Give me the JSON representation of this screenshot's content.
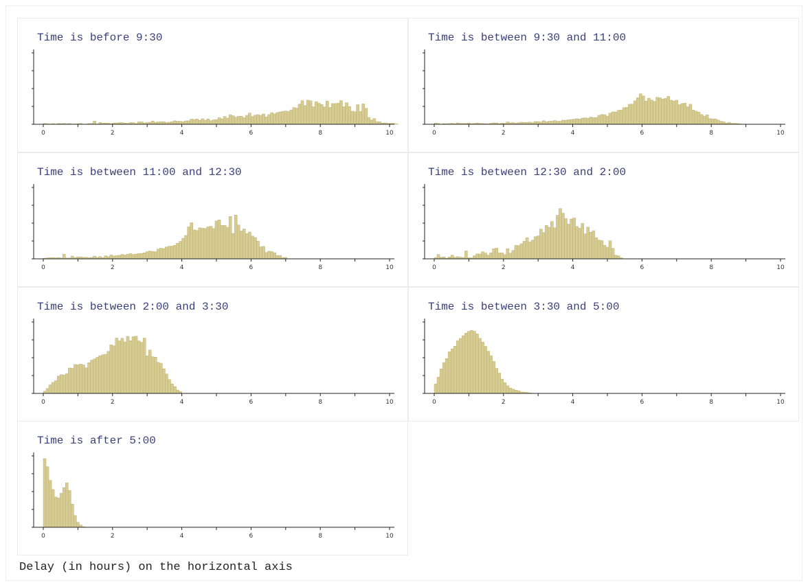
{
  "footer": "Delay (in hours) on the horizontal axis",
  "colors": {
    "bar_fill": "#d6cc93",
    "bar_stroke": "#bdb171",
    "axis": "#222222",
    "title": "#3a3f7a"
  },
  "chart_data": [
    {
      "type": "bar",
      "title": "Time is before 9:30",
      "x_ticks": [
        0,
        2,
        4,
        6,
        8,
        10
      ],
      "xlim": [
        0,
        10
      ],
      "ylim": [
        0,
        1
      ],
      "bin_width": 0.08,
      "x": [
        0.0,
        0.08,
        0.16,
        0.24,
        0.32,
        0.4,
        0.48,
        0.56,
        0.64,
        0.72,
        0.8,
        0.88,
        0.96,
        1.04,
        1.12,
        1.2,
        1.28,
        1.36,
        1.44,
        1.52,
        1.6,
        1.68,
        1.76,
        1.84,
        1.92,
        2.0,
        2.08,
        2.16,
        2.24,
        2.32,
        2.4,
        2.48,
        2.56,
        2.64,
        2.72,
        2.8,
        2.88,
        2.96,
        3.04,
        3.12,
        3.2,
        3.28,
        3.36,
        3.44,
        3.52,
        3.6,
        3.68,
        3.76,
        3.84,
        3.92,
        4.0,
        4.08,
        4.16,
        4.24,
        4.32,
        4.4,
        4.48,
        4.56,
        4.64,
        4.72,
        4.8,
        4.88,
        4.96,
        5.04,
        5.12,
        5.2,
        5.28,
        5.36,
        5.44,
        5.52,
        5.6,
        5.68,
        5.76,
        5.84,
        5.92,
        6.0,
        6.08,
        6.16,
        6.24,
        6.32,
        6.4,
        6.48,
        6.56,
        6.64,
        6.72,
        6.8,
        6.88,
        6.96,
        7.04,
        7.12,
        7.2,
        7.28,
        7.36,
        7.44,
        7.52,
        7.6,
        7.68,
        7.76,
        7.84,
        7.92,
        8.0,
        8.08,
        8.16,
        8.24,
        8.32,
        8.4,
        8.48,
        8.56,
        8.64,
        8.72,
        8.8,
        8.88,
        8.96,
        9.04,
        9.12,
        9.2,
        9.28,
        9.36,
        9.44,
        9.52,
        9.6,
        9.68,
        9.76,
        9.84,
        9.92,
        10.0,
        10.08,
        10.16
      ],
      "values": [
        0.011,
        0.006,
        0.003,
        0.009,
        0.0,
        0.012,
        0.007,
        0.011,
        0.006,
        0.011,
        0.003,
        0.004,
        0.006,
        0.011,
        0.0,
        0.0,
        0.01,
        0.01,
        0.046,
        0.005,
        0.025,
        0.016,
        0.017,
        0.014,
        0.009,
        0.018,
        0.019,
        0.023,
        0.023,
        0.017,
        0.013,
        0.024,
        0.023,
        0.01,
        0.033,
        0.034,
        0.019,
        0.024,
        0.028,
        0.046,
        0.027,
        0.033,
        0.035,
        0.036,
        0.023,
        0.029,
        0.037,
        0.049,
        0.042,
        0.041,
        0.036,
        0.048,
        0.049,
        0.072,
        0.066,
        0.073,
        0.055,
        0.077,
        0.057,
        0.074,
        0.05,
        0.062,
        0.064,
        0.092,
        0.077,
        0.11,
        0.086,
        0.134,
        0.119,
        0.098,
        0.111,
        0.113,
        0.093,
        0.125,
        0.157,
        0.109,
        0.128,
        0.135,
        0.126,
        0.144,
        0.104,
        0.136,
        0.163,
        0.146,
        0.165,
        0.173,
        0.181,
        0.186,
        0.179,
        0.201,
        0.234,
        0.226,
        0.283,
        0.331,
        0.262,
        0.338,
        0.329,
        0.245,
        0.317,
        0.296,
        0.276,
        0.244,
        0.325,
        0.236,
        0.29,
        0.29,
        0.297,
        0.331,
        0.245,
        0.302,
        0.248,
        0.183,
        0.176,
        0.274,
        0.178,
        0.285,
        0.224,
        0.095,
        0.06,
        0.08,
        0.036,
        0.034,
        0.017,
        0.019,
        0.013,
        0.013,
        0.013,
        0.006
      ]
    },
    {
      "type": "bar",
      "title": "Time is between 9:30 and 11:00",
      "x_ticks": [
        0,
        2,
        4,
        6,
        8,
        10
      ],
      "xlim": [
        0,
        10
      ],
      "ylim": [
        0,
        1
      ],
      "bin_width": 0.08,
      "x": [
        0.0,
        0.08,
        0.16,
        0.24,
        0.32,
        0.4,
        0.48,
        0.56,
        0.64,
        0.72,
        0.8,
        0.88,
        0.96,
        1.04,
        1.12,
        1.2,
        1.28,
        1.36,
        1.44,
        1.52,
        1.6,
        1.68,
        1.76,
        1.84,
        1.92,
        2.0,
        2.08,
        2.16,
        2.24,
        2.32,
        2.4,
        2.48,
        2.56,
        2.64,
        2.72,
        2.8,
        2.88,
        2.96,
        3.04,
        3.12,
        3.2,
        3.28,
        3.36,
        3.44,
        3.52,
        3.6,
        3.68,
        3.76,
        3.84,
        3.92,
        4.0,
        4.08,
        4.16,
        4.24,
        4.32,
        4.4,
        4.48,
        4.56,
        4.64,
        4.72,
        4.8,
        4.88,
        4.96,
        5.04,
        5.12,
        5.2,
        5.28,
        5.36,
        5.44,
        5.52,
        5.6,
        5.68,
        5.76,
        5.84,
        5.92,
        6.0,
        6.08,
        6.16,
        6.24,
        6.32,
        6.4,
        6.48,
        6.56,
        6.64,
        6.72,
        6.8,
        6.88,
        6.96,
        7.04,
        7.12,
        7.2,
        7.28,
        7.36,
        7.44,
        7.52,
        7.6,
        7.68,
        7.76,
        7.84,
        7.92,
        8.0,
        8.08,
        8.16,
        8.24,
        8.32,
        8.4,
        8.48,
        8.56,
        8.64,
        8.72,
        8.8
      ],
      "values": [
        0.017,
        0.011,
        0.003,
        0.008,
        0.008,
        0.01,
        0.013,
        0.006,
        0.019,
        0.011,
        0.011,
        0.012,
        0.018,
        0.007,
        0.011,
        0.018,
        0.012,
        0.01,
        0.008,
        0.006,
        0.014,
        0.02,
        0.019,
        0.008,
        0.017,
        0.013,
        0.033,
        0.02,
        0.024,
        0.014,
        0.022,
        0.029,
        0.026,
        0.025,
        0.031,
        0.023,
        0.038,
        0.038,
        0.03,
        0.05,
        0.035,
        0.042,
        0.044,
        0.052,
        0.043,
        0.043,
        0.058,
        0.056,
        0.063,
        0.065,
        0.072,
        0.077,
        0.072,
        0.086,
        0.09,
        0.084,
        0.1,
        0.093,
        0.093,
        0.125,
        0.137,
        0.134,
        0.115,
        0.157,
        0.173,
        0.172,
        0.196,
        0.2,
        0.232,
        0.236,
        0.28,
        0.282,
        0.329,
        0.371,
        0.426,
        0.396,
        0.324,
        0.365,
        0.338,
        0.32,
        0.377,
        0.37,
        0.354,
        0.361,
        0.39,
        0.337,
        0.326,
        0.336,
        0.274,
        0.289,
        0.297,
        0.245,
        0.28,
        0.198,
        0.183,
        0.171,
        0.136,
        0.114,
        0.132,
        0.078,
        0.073,
        0.075,
        0.059,
        0.042,
        0.034,
        0.018,
        0.025,
        0.013,
        0.012,
        0.01,
        0.005
      ]
    },
    {
      "type": "bar",
      "title": "Time is between 11:00 and 12:30",
      "x_ticks": [
        0,
        2,
        4,
        6,
        8,
        10
      ],
      "xlim": [
        0,
        10
      ],
      "ylim": [
        0,
        1
      ],
      "bin_width": 0.08,
      "x": [
        0.0,
        0.08,
        0.16,
        0.24,
        0.32,
        0.4,
        0.48,
        0.56,
        0.64,
        0.72,
        0.8,
        0.88,
        0.96,
        1.04,
        1.12,
        1.2,
        1.28,
        1.36,
        1.44,
        1.52,
        1.6,
        1.68,
        1.76,
        1.84,
        1.92,
        2.0,
        2.08,
        2.16,
        2.24,
        2.32,
        2.4,
        2.48,
        2.56,
        2.64,
        2.72,
        2.8,
        2.88,
        2.96,
        3.04,
        3.12,
        3.2,
        3.28,
        3.36,
        3.44,
        3.52,
        3.6,
        3.68,
        3.76,
        3.84,
        3.92,
        4.0,
        4.08,
        4.16,
        4.24,
        4.32,
        4.4,
        4.48,
        4.56,
        4.64,
        4.72,
        4.8,
        4.88,
        4.96,
        5.04,
        5.12,
        5.2,
        5.28,
        5.36,
        5.44,
        5.52,
        5.6,
        5.68,
        5.76,
        5.84,
        5.92,
        6.0,
        6.08,
        6.16,
        6.24,
        6.32,
        6.4,
        6.48,
        6.56,
        6.64,
        6.72,
        6.8,
        6.88,
        6.96
      ],
      "values": [
        0.009,
        0.013,
        0.017,
        0.017,
        0.014,
        0.017,
        0.012,
        0.066,
        0.011,
        0.012,
        0.039,
        0.018,
        0.028,
        0.028,
        0.022,
        0.023,
        0.016,
        0.02,
        0.038,
        0.02,
        0.032,
        0.016,
        0.043,
        0.03,
        0.054,
        0.04,
        0.046,
        0.05,
        0.062,
        0.053,
        0.066,
        0.073,
        0.061,
        0.067,
        0.075,
        0.076,
        0.084,
        0.1,
        0.109,
        0.104,
        0.1,
        0.136,
        0.149,
        0.144,
        0.166,
        0.176,
        0.179,
        0.19,
        0.219,
        0.245,
        0.288,
        0.327,
        0.447,
        0.506,
        0.405,
        0.397,
        0.435,
        0.428,
        0.425,
        0.448,
        0.456,
        0.424,
        0.531,
        0.545,
        0.469,
        0.468,
        0.442,
        0.593,
        0.356,
        0.613,
        0.473,
        0.393,
        0.418,
        0.354,
        0.375,
        0.319,
        0.298,
        0.247,
        0.167,
        0.174,
        0.089,
        0.107,
        0.101,
        0.086,
        0.045,
        0.047,
        0.018,
        0.02
      ]
    },
    {
      "type": "bar",
      "title": "Time is between 12:30 and 2:00",
      "x_ticks": [
        0,
        2,
        4,
        6,
        8,
        10
      ],
      "xlim": [
        0,
        10
      ],
      "ylim": [
        0,
        1
      ],
      "bin_width": 0.08,
      "x": [
        0.0,
        0.08,
        0.16,
        0.24,
        0.32,
        0.4,
        0.48,
        0.56,
        0.64,
        0.72,
        0.8,
        0.88,
        0.96,
        1.04,
        1.12,
        1.2,
        1.28,
        1.36,
        1.44,
        1.52,
        1.6,
        1.68,
        1.76,
        1.84,
        1.92,
        2.0,
        2.08,
        2.16,
        2.24,
        2.32,
        2.4,
        2.48,
        2.56,
        2.64,
        2.72,
        2.8,
        2.88,
        2.96,
        3.04,
        3.12,
        3.2,
        3.28,
        3.36,
        3.44,
        3.52,
        3.6,
        3.68,
        3.76,
        3.84,
        3.92,
        4.0,
        4.08,
        4.16,
        4.24,
        4.32,
        4.4,
        4.48,
        4.56,
        4.64,
        4.72,
        4.8,
        4.88,
        4.96,
        5.04,
        5.12,
        5.2,
        5.28,
        5.36
      ],
      "values": [
        0.018,
        0.061,
        0.022,
        0.027,
        0.009,
        0.026,
        0.052,
        0.022,
        0.03,
        0.023,
        0.019,
        0.111,
        0.015,
        0.013,
        0.043,
        0.069,
        0.067,
        0.099,
        0.081,
        0.052,
        0.085,
        0.141,
        0.15,
        0.083,
        0.083,
        0.059,
        0.142,
        0.079,
        0.117,
        0.188,
        0.186,
        0.211,
        0.246,
        0.296,
        0.236,
        0.262,
        0.31,
        0.321,
        0.417,
        0.369,
        0.468,
        0.442,
        0.523,
        0.435,
        0.61,
        0.704,
        0.639,
        0.563,
        0.486,
        0.558,
        0.572,
        0.453,
        0.429,
        0.496,
        0.35,
        0.444,
        0.373,
        0.394,
        0.296,
        0.263,
        0.255,
        0.189,
        0.163,
        0.252,
        0.147,
        0.051,
        0.043,
        0.014
      ]
    },
    {
      "type": "bar",
      "title": "Time is between 2:00 and 3:30",
      "x_ticks": [
        0,
        2,
        4,
        6,
        8,
        10
      ],
      "xlim": [
        0,
        10
      ],
      "ylim": [
        0,
        1
      ],
      "bin_width": 0.08,
      "x": [
        0.0,
        0.08,
        0.16,
        0.24,
        0.32,
        0.4,
        0.48,
        0.56,
        0.64,
        0.72,
        0.8,
        0.88,
        0.96,
        1.04,
        1.12,
        1.2,
        1.28,
        1.36,
        1.44,
        1.52,
        1.6,
        1.68,
        1.76,
        1.84,
        1.92,
        2.0,
        2.08,
        2.16,
        2.24,
        2.32,
        2.4,
        2.48,
        2.56,
        2.64,
        2.72,
        2.8,
        2.88,
        2.96,
        3.04,
        3.12,
        3.2,
        3.28,
        3.36,
        3.44,
        3.52,
        3.6,
        3.68,
        3.76,
        3.84,
        3.92
      ],
      "values": [
        0.03,
        0.069,
        0.12,
        0.154,
        0.178,
        0.242,
        0.262,
        0.258,
        0.278,
        0.356,
        0.351,
        0.405,
        0.4,
        0.41,
        0.399,
        0.358,
        0.43,
        0.466,
        0.483,
        0.505,
        0.526,
        0.542,
        0.548,
        0.589,
        0.681,
        0.666,
        0.774,
        0.739,
        0.772,
        0.721,
        0.798,
        0.738,
        0.794,
        0.8,
        0.735,
        0.716,
        0.774,
        0.526,
        0.607,
        0.513,
        0.507,
        0.435,
        0.422,
        0.345,
        0.271,
        0.195,
        0.133,
        0.094,
        0.047,
        0.025
      ]
    },
    {
      "type": "bar",
      "title": "Time is between 3:30 and 5:00",
      "x_ticks": [
        0,
        2,
        4,
        6,
        8,
        10
      ],
      "xlim": [
        0,
        10
      ],
      "ylim": [
        0,
        1
      ],
      "bin_width": 0.08,
      "x": [
        0.0,
        0.08,
        0.16,
        0.24,
        0.32,
        0.4,
        0.48,
        0.56,
        0.64,
        0.72,
        0.8,
        0.88,
        0.96,
        1.04,
        1.12,
        1.2,
        1.28,
        1.36,
        1.44,
        1.52,
        1.6,
        1.68,
        1.76,
        1.84,
        1.92,
        2.0,
        2.08,
        2.16,
        2.24,
        2.32,
        2.4,
        2.48,
        2.56,
        2.64,
        2.72
      ],
      "values": [
        0.133,
        0.227,
        0.342,
        0.432,
        0.488,
        0.585,
        0.624,
        0.661,
        0.735,
        0.77,
        0.808,
        0.843,
        0.869,
        0.882,
        0.87,
        0.833,
        0.771,
        0.719,
        0.659,
        0.591,
        0.528,
        0.447,
        0.351,
        0.284,
        0.201,
        0.15,
        0.107,
        0.075,
        0.059,
        0.046,
        0.037,
        0.02,
        0.016,
        0.013,
        0.006
      ]
    },
    {
      "type": "bar",
      "title": "Time is after 5:00",
      "x_ticks": [
        0,
        2,
        4,
        6,
        8,
        10
      ],
      "xlim": [
        0,
        10
      ],
      "ylim": [
        0,
        1
      ],
      "bin_width": 0.08,
      "x": [
        0.0,
        0.08,
        0.16,
        0.24,
        0.32,
        0.4,
        0.48,
        0.56,
        0.64,
        0.72,
        0.8,
        0.88,
        0.96,
        1.04,
        1.12
      ],
      "values": [
        0.962,
        0.849,
        0.657,
        0.529,
        0.424,
        0.41,
        0.476,
        0.556,
        0.623,
        0.515,
        0.325,
        0.165,
        0.071,
        0.032,
        0.007
      ]
    }
  ]
}
